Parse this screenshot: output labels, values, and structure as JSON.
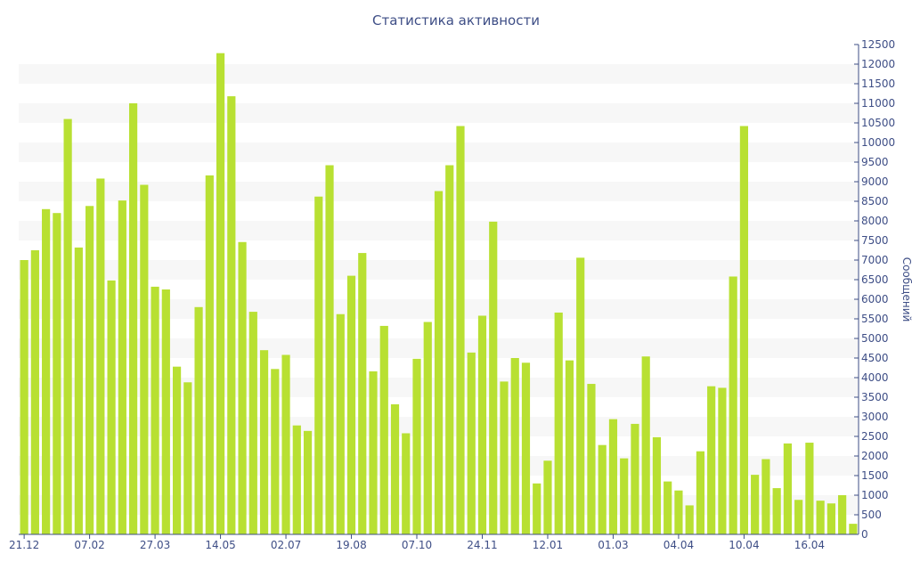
{
  "chart_data": {
    "type": "bar",
    "title": "Статистика активности",
    "xlabel": "",
    "ylabel": "Сообщений",
    "ylim": [
      0,
      12500
    ],
    "y_ticks": [
      0,
      500,
      1000,
      1500,
      2000,
      2500,
      3000,
      3500,
      4000,
      4500,
      5000,
      5500,
      6000,
      6500,
      7000,
      7500,
      8000,
      8500,
      9000,
      9500,
      10000,
      10500,
      11000,
      11500,
      12000,
      12500
    ],
    "x_tick_labels": [
      {
        "index": 0,
        "label": "21.12"
      },
      {
        "index": 6,
        "label": "07.02"
      },
      {
        "index": 12,
        "label": "27.03"
      },
      {
        "index": 18,
        "label": "14.05"
      },
      {
        "index": 24,
        "label": "02.07"
      },
      {
        "index": 30,
        "label": "19.08"
      },
      {
        "index": 36,
        "label": "07.10"
      },
      {
        "index": 42,
        "label": "24.11"
      },
      {
        "index": 48,
        "label": "12.01"
      },
      {
        "index": 54,
        "label": "01.03"
      },
      {
        "index": 60,
        "label": "04.04"
      },
      {
        "index": 66,
        "label": "10.04"
      },
      {
        "index": 72,
        "label": "16.04"
      }
    ],
    "grid": "alternating-bands",
    "y_axis_position": "right",
    "bar_color": "#b8e032",
    "band_color": "#f7f7f7",
    "text_color": "#3e4e86",
    "values": [
      7000,
      7250,
      8300,
      8200,
      10600,
      7320,
      8380,
      9080,
      6480,
      8520,
      11000,
      8920,
      6320,
      6250,
      4280,
      3880,
      5800,
      9160,
      12280,
      11180,
      7460,
      5680,
      4700,
      4220,
      4580,
      2780,
      2640,
      8620,
      9420,
      5620,
      6600,
      7180,
      4160,
      5320,
      3320,
      2580,
      4480,
      5420,
      8760,
      9420,
      10420,
      4640,
      5580,
      7980,
      3900,
      4500,
      4380,
      1300,
      1880,
      5660,
      4440,
      7060,
      3840,
      2280,
      2940,
      1940,
      2820,
      4540,
      2480,
      1350,
      1120,
      740,
      2120,
      3780,
      3740,
      6580,
      10420,
      1520,
      1920,
      1180,
      2320,
      880,
      2340,
      860,
      790,
      1000,
      270
    ]
  }
}
